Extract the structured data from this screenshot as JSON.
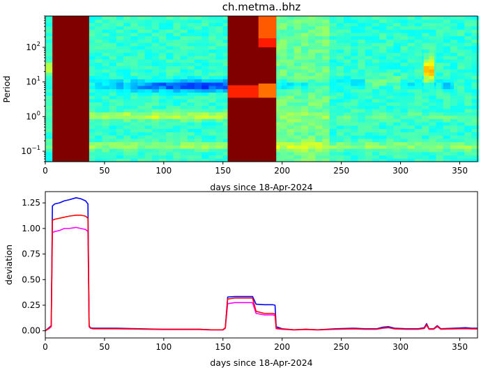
{
  "chart_data": [
    {
      "type": "heatmap",
      "title": "ch.metma..bhz",
      "xlabel": "days since 18-Apr-2024",
      "ylabel": "Period",
      "xlim": [
        0,
        365
      ],
      "ylim": [
        0.05,
        800
      ],
      "yscale": "log",
      "xticks": [
        0,
        50,
        100,
        150,
        200,
        250,
        300,
        350
      ],
      "yticks": [
        {
          "value": 0.1,
          "base": "10",
          "exp": "−1"
        },
        {
          "value": 1,
          "base": "10",
          "exp": "0"
        },
        {
          "value": 10,
          "base": "10",
          "exp": "1"
        },
        {
          "value": 100,
          "base": "10",
          "exp": "2"
        }
      ],
      "colormap": "jet",
      "saturated_bands": [
        {
          "x": [
            6,
            37
          ]
        },
        {
          "x": [
            154,
            195
          ]
        }
      ]
    },
    {
      "type": "line",
      "xlabel": "days since 18-Apr-2024",
      "ylabel": "deviation",
      "xlim": [
        0,
        365
      ],
      "ylim": [
        -0.07,
        1.36
      ],
      "xticks": [
        0,
        50,
        100,
        150,
        200,
        250,
        300,
        350
      ],
      "yticks": [
        0.0,
        0.25,
        0.5,
        0.75,
        1.0,
        1.25
      ],
      "series": [
        {
          "color": "#0000ff",
          "points": [
            [
              0,
              0
            ],
            [
              3,
              0.03
            ],
            [
              5,
              0.05
            ],
            [
              6,
              1.22
            ],
            [
              8,
              1.24
            ],
            [
              12,
              1.25
            ],
            [
              16,
              1.27
            ],
            [
              20,
              1.28
            ],
            [
              26,
              1.3
            ],
            [
              30,
              1.29
            ],
            [
              34,
              1.27
            ],
            [
              36,
              1.24
            ],
            [
              37,
              0.05
            ],
            [
              38,
              0.03
            ],
            [
              40,
              0.025
            ],
            [
              60,
              0.025
            ],
            [
              100,
              0.015
            ],
            [
              130,
              0.015
            ],
            [
              140,
              0.01
            ],
            [
              150,
              0.01
            ],
            [
              152,
              0.03
            ],
            [
              154,
              0.33
            ],
            [
              160,
              0.335
            ],
            [
              175,
              0.335
            ],
            [
              178,
              0.26
            ],
            [
              185,
              0.255
            ],
            [
              192,
              0.255
            ],
            [
              194,
              0.25
            ],
            [
              195,
              0.04
            ],
            [
              200,
              0.02
            ],
            [
              210,
              0.01
            ],
            [
              220,
              0.015
            ],
            [
              230,
              0.01
            ],
            [
              245,
              0.02
            ],
            [
              260,
              0.025
            ],
            [
              270,
              0.02
            ],
            [
              280,
              0.02
            ],
            [
              285,
              0.035
            ],
            [
              290,
              0.04
            ],
            [
              295,
              0.025
            ],
            [
              305,
              0.02
            ],
            [
              315,
              0.02
            ],
            [
              320,
              0.03
            ],
            [
              322,
              0.07
            ],
            [
              324,
              0.02
            ],
            [
              328,
              0.02
            ],
            [
              331,
              0.05
            ],
            [
              334,
              0.02
            ],
            [
              345,
              0.025
            ],
            [
              355,
              0.03
            ],
            [
              360,
              0.025
            ],
            [
              365,
              0.025
            ]
          ]
        },
        {
          "color": "#ff00ff",
          "points": [
            [
              0,
              0
            ],
            [
              3,
              0.02
            ],
            [
              5,
              0.04
            ],
            [
              6,
              0.96
            ],
            [
              8,
              0.97
            ],
            [
              12,
              0.98
            ],
            [
              16,
              1.0
            ],
            [
              20,
              1.0
            ],
            [
              26,
              1.01
            ],
            [
              30,
              1.0
            ],
            [
              34,
              0.99
            ],
            [
              36,
              0.97
            ],
            [
              37,
              0.04
            ],
            [
              38,
              0.025
            ],
            [
              40,
              0.02
            ],
            [
              60,
              0.02
            ],
            [
              100,
              0.012
            ],
            [
              130,
              0.012
            ],
            [
              140,
              0.008
            ],
            [
              150,
              0.008
            ],
            [
              152,
              0.025
            ],
            [
              154,
              0.265
            ],
            [
              160,
              0.275
            ],
            [
              175,
              0.275
            ],
            [
              178,
              0.17
            ],
            [
              185,
              0.155
            ],
            [
              192,
              0.155
            ],
            [
              194,
              0.15
            ],
            [
              195,
              0.02
            ],
            [
              200,
              0.015
            ],
            [
              210,
              0.008
            ],
            [
              220,
              0.012
            ],
            [
              230,
              0.008
            ],
            [
              245,
              0.015
            ],
            [
              260,
              0.018
            ],
            [
              270,
              0.015
            ],
            [
              280,
              0.015
            ],
            [
              285,
              0.025
            ],
            [
              290,
              0.03
            ],
            [
              295,
              0.018
            ],
            [
              305,
              0.015
            ],
            [
              315,
              0.015
            ],
            [
              320,
              0.022
            ],
            [
              322,
              0.055
            ],
            [
              324,
              0.015
            ],
            [
              328,
              0.015
            ],
            [
              331,
              0.04
            ],
            [
              334,
              0.015
            ],
            [
              345,
              0.018
            ],
            [
              355,
              0.02
            ],
            [
              360,
              0.018
            ],
            [
              365,
              0.018
            ]
          ]
        },
        {
          "color": "#ff0000",
          "points": [
            [
              0,
              0
            ],
            [
              3,
              0.025
            ],
            [
              5,
              0.045
            ],
            [
              6,
              1.08
            ],
            [
              8,
              1.09
            ],
            [
              12,
              1.1
            ],
            [
              16,
              1.11
            ],
            [
              20,
              1.12
            ],
            [
              26,
              1.13
            ],
            [
              30,
              1.13
            ],
            [
              34,
              1.12
            ],
            [
              36,
              1.1
            ],
            [
              37,
              0.045
            ],
            [
              38,
              0.03
            ],
            [
              40,
              0.02
            ],
            [
              60,
              0.02
            ],
            [
              100,
              0.015
            ],
            [
              130,
              0.015
            ],
            [
              140,
              0.01
            ],
            [
              150,
              0.01
            ],
            [
              152,
              0.03
            ],
            [
              154,
              0.31
            ],
            [
              160,
              0.32
            ],
            [
              175,
              0.32
            ],
            [
              178,
              0.19
            ],
            [
              185,
              0.17
            ],
            [
              192,
              0.17
            ],
            [
              194,
              0.165
            ],
            [
              195,
              0.025
            ],
            [
              200,
              0.018
            ],
            [
              210,
              0.01
            ],
            [
              220,
              0.015
            ],
            [
              230,
              0.01
            ],
            [
              245,
              0.016
            ],
            [
              260,
              0.02
            ],
            [
              270,
              0.016
            ],
            [
              280,
              0.016
            ],
            [
              285,
              0.028
            ],
            [
              290,
              0.032
            ],
            [
              295,
              0.02
            ],
            [
              305,
              0.016
            ],
            [
              315,
              0.016
            ],
            [
              320,
              0.025
            ],
            [
              322,
              0.06
            ],
            [
              324,
              0.018
            ],
            [
              328,
              0.018
            ],
            [
              331,
              0.045
            ],
            [
              334,
              0.018
            ],
            [
              345,
              0.02
            ],
            [
              355,
              0.022
            ],
            [
              360,
              0.02
            ],
            [
              365,
              0.02
            ]
          ]
        }
      ]
    }
  ]
}
